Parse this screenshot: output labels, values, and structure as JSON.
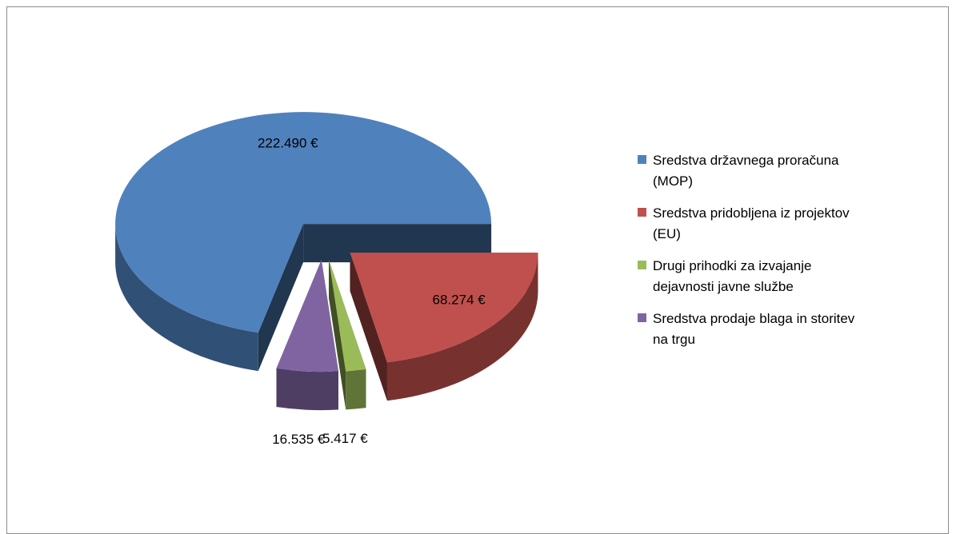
{
  "chart_data": {
    "type": "pie3d",
    "categories": [
      "Sredstva državnega proračuna (MOP)",
      "Sredstva pridobljena iz projektov (EU)",
      "Drugi prihodki za izvajanje dejavnosti javne službe",
      "Sredstva prodaje blaga in storitev na trgu"
    ],
    "values": [
      222490,
      68274,
      5417,
      16535
    ],
    "value_labels": [
      "222.490 €",
      "68.274 €",
      "5.417 €",
      "16.535 €"
    ],
    "colors": [
      "#4f81bd",
      "#c0504d",
      "#9bbb59",
      "#8064a2"
    ],
    "legend": "right"
  }
}
